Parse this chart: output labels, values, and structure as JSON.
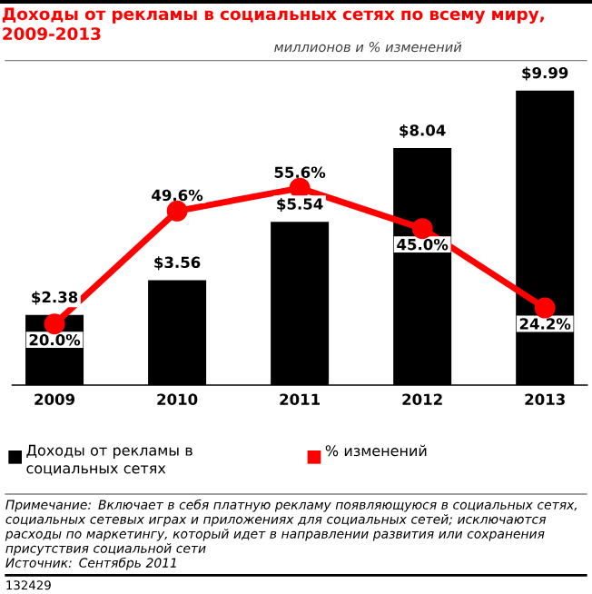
{
  "chart_data": {
    "type": "bar",
    "title": "Доходы от рекламы в социальных сетях по всему миру, 2009-2013",
    "subtitle": "миллионов и % изменений",
    "categories": [
      "2009",
      "2010",
      "2011",
      "2012",
      "2013"
    ],
    "series": [
      {
        "name": "Доходы от рекламы в социальных сетях",
        "color": "#000000",
        "values": [
          2.38,
          3.56,
          5.54,
          8.04,
          9.99
        ],
        "value_labels": [
          "$2.38",
          "$3.56",
          "$5.54",
          "$8.04",
          "$9.99"
        ]
      },
      {
        "name": "% изменений",
        "type": "line",
        "axis": "y2",
        "color": "#ff0000",
        "marker": "circle",
        "values": [
          20.0,
          49.6,
          55.6,
          45.0,
          24.2
        ],
        "value_labels": [
          "20.0%",
          "49.6%",
          "55.6%",
          "45.0%",
          "24.2%"
        ]
      }
    ],
    "tick_labels": "x",
    "legend": "bottom left",
    "annotations": [
      "Примечание: Включает в себя платную рекламу появляющуюся в социальных сетях, социальных сетевых играх и приложениях для социальных сетей; исключаются расходы по маркетингу, который идет в направлении развития или сохранения присутствия социальной сети",
      "Источник: Сентябрь 2011",
      "132429"
    ]
  }
}
